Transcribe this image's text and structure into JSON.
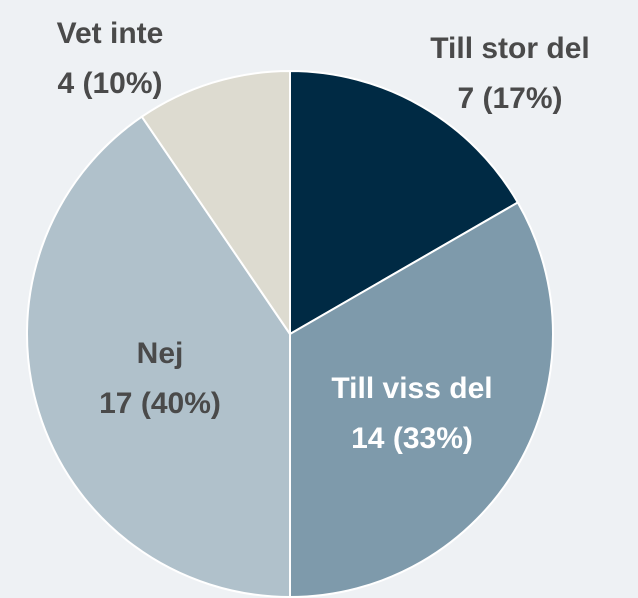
{
  "chart_data": {
    "type": "pie",
    "categories": [
      "Till stor del",
      "Till viss del",
      "Nej",
      "Vet inte"
    ],
    "values": [
      7,
      14,
      17,
      4
    ],
    "value_labels": [
      "7 (17%)",
      "14 (33%)",
      "17 (40%)",
      "4 (10%)"
    ],
    "colors": [
      "#002a44",
      "#7e9aab",
      "#b0c1cb",
      "#dddbd0"
    ]
  }
}
